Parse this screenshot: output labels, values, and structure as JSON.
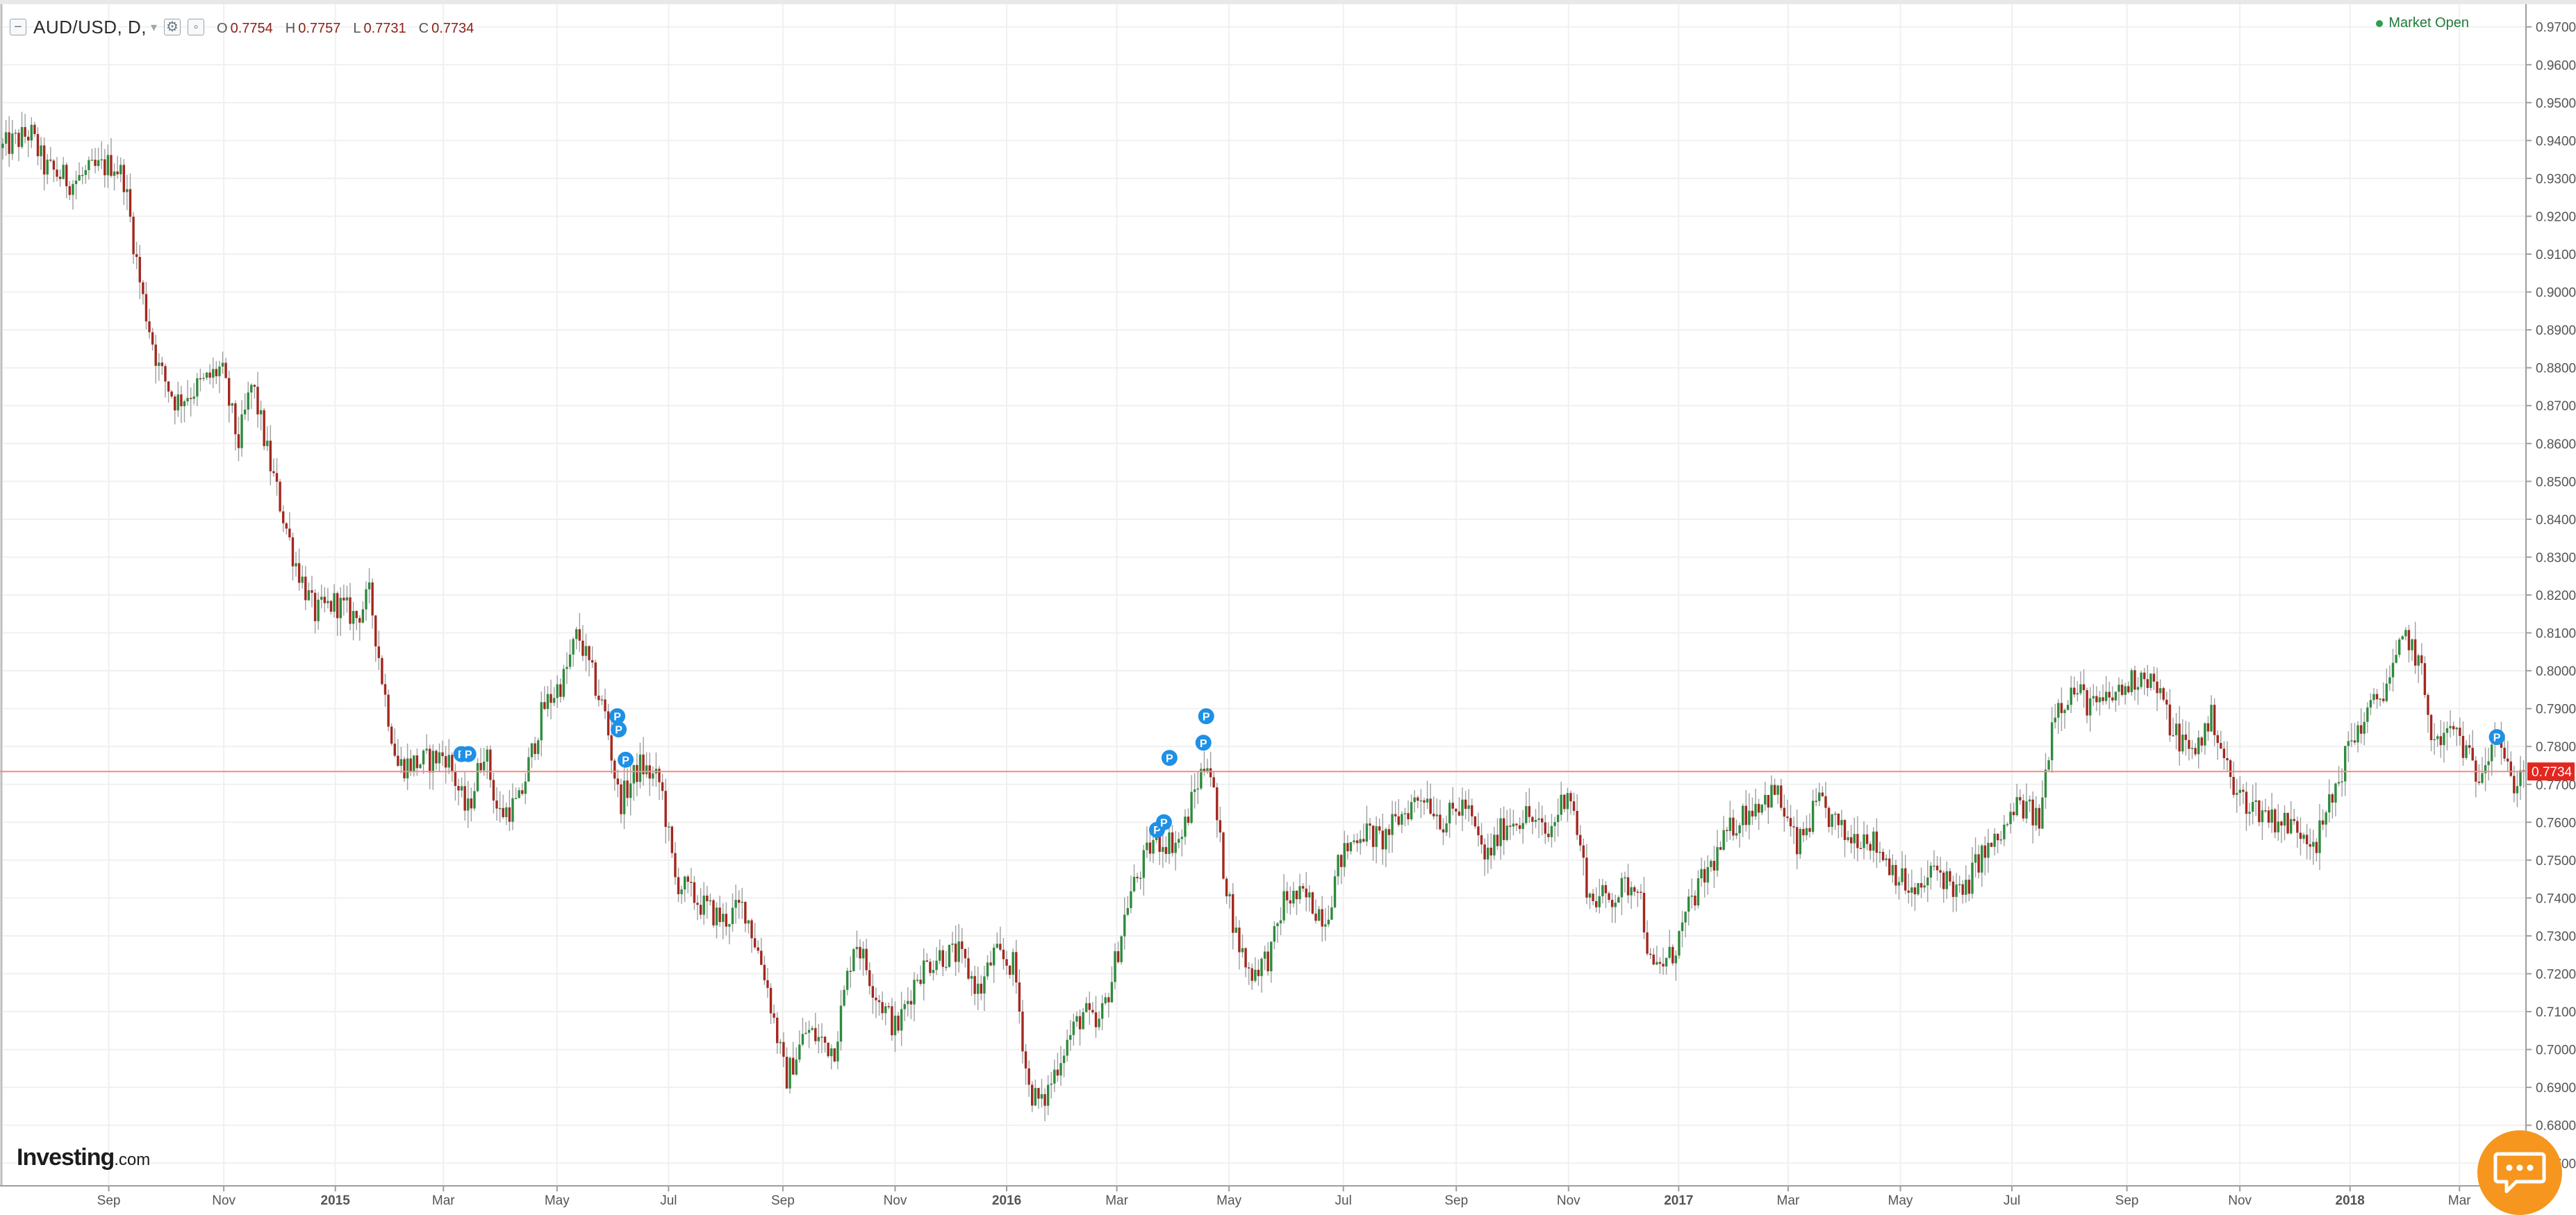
{
  "header": {
    "symbol": "AUD/USD, D,",
    "ohlc": [
      {
        "key": "O",
        "value": "0.7754"
      },
      {
        "key": "H",
        "value": "0.7757"
      },
      {
        "key": "L",
        "value": "0.7731"
      },
      {
        "key": "C",
        "value": "0.7734"
      }
    ],
    "market_status": "Market Open",
    "icons": [
      "collapse-legend-icon",
      "settings-icon",
      "hide-icon",
      "symbol-caret-icon"
    ]
  },
  "brand": {
    "name": "Investing",
    "suffix": ".com"
  },
  "chat": {
    "icon": "chat-bubble-icon"
  },
  "colors": {
    "up": "#2e8b3d",
    "down": "#a3271f",
    "wick": "#9e9e9e",
    "price_line": "#f28b82",
    "price_label_bg": "#e3261f",
    "marker": "#1e90e5",
    "chat": "#f6961e",
    "market_open": "#2e9d4f"
  },
  "chart_data": {
    "type": "candlestick",
    "interval": "D",
    "symbol": "AUD/USD",
    "last_price": "0.7734",
    "ylim": [
      0.664,
      0.976
    ],
    "price_ticks": [
      "0.9700",
      "0.9600",
      "0.9500",
      "0.9400",
      "0.9300",
      "0.9200",
      "0.9100",
      "0.9000",
      "0.8900",
      "0.8800",
      "0.8700",
      "0.8600",
      "0.8500",
      "0.8400",
      "0.8300",
      "0.8200",
      "0.8100",
      "0.8000",
      "0.7900",
      "0.7800",
      "0.7700",
      "0.7600",
      "0.7500",
      "0.7400",
      "0.7300",
      "0.7200",
      "0.7100",
      "0.7000",
      "0.6900",
      "0.6800",
      "0.6700"
    ],
    "time_ticks": [
      {
        "label": "Sep",
        "t": 153
      },
      {
        "label": "Nov",
        "t": 319
      },
      {
        "label": "2015",
        "t": 480,
        "bold": true
      },
      {
        "label": "Mar",
        "t": 636
      },
      {
        "label": "May",
        "t": 800
      },
      {
        "label": "Jul",
        "t": 961
      },
      {
        "label": "Sep",
        "t": 1126
      },
      {
        "label": "Nov",
        "t": 1288
      },
      {
        "label": "2016",
        "t": 1449,
        "bold": true
      },
      {
        "label": "Mar",
        "t": 1608
      },
      {
        "label": "May",
        "t": 1770
      },
      {
        "label": "Jul",
        "t": 1935
      },
      {
        "label": "Sep",
        "t": 2098
      },
      {
        "label": "Nov",
        "t": 2260
      },
      {
        "label": "2017",
        "t": 2419,
        "bold": true
      },
      {
        "label": "Mar",
        "t": 2577
      },
      {
        "label": "May",
        "t": 2739
      },
      {
        "label": "Jul",
        "t": 2900
      },
      {
        "label": "Sep",
        "t": 3066
      },
      {
        "label": "Nov",
        "t": 3229
      },
      {
        "label": "2018",
        "t": 3388,
        "bold": true
      },
      {
        "label": "Mar",
        "t": 3546
      }
    ],
    "t_range": [
      0,
      3642
    ],
    "path_keypoints": [
      [
        0,
        0.938
      ],
      [
        40,
        0.942
      ],
      [
        60,
        0.933
      ],
      [
        100,
        0.929
      ],
      [
        130,
        0.932
      ],
      [
        160,
        0.934
      ],
      [
        175,
        0.93
      ],
      [
        200,
        0.9
      ],
      [
        225,
        0.88
      ],
      [
        250,
        0.871
      ],
      [
        290,
        0.876
      ],
      [
        315,
        0.88
      ],
      [
        340,
        0.86
      ],
      [
        360,
        0.876
      ],
      [
        385,
        0.855
      ],
      [
        420,
        0.83
      ],
      [
        450,
        0.815
      ],
      [
        480,
        0.818
      ],
      [
        510,
        0.814
      ],
      [
        530,
        0.82
      ],
      [
        550,
        0.795
      ],
      [
        570,
        0.775
      ],
      [
        610,
        0.776
      ],
      [
        640,
        0.778
      ],
      [
        670,
        0.762
      ],
      [
        695,
        0.78
      ],
      [
        715,
        0.762
      ],
      [
        745,
        0.765
      ],
      [
        780,
        0.79
      ],
      [
        810,
        0.798
      ],
      [
        830,
        0.81
      ],
      [
        870,
        0.788
      ],
      [
        890,
        0.765
      ],
      [
        920,
        0.775
      ],
      [
        950,
        0.77
      ],
      [
        970,
        0.745
      ],
      [
        1010,
        0.738
      ],
      [
        1040,
        0.734
      ],
      [
        1070,
        0.738
      ],
      [
        1100,
        0.72
      ],
      [
        1130,
        0.692
      ],
      [
        1160,
        0.705
      ],
      [
        1200,
        0.7
      ],
      [
        1230,
        0.73
      ],
      [
        1260,
        0.715
      ],
      [
        1290,
        0.705
      ],
      [
        1320,
        0.72
      ],
      [
        1350,
        0.725
      ],
      [
        1380,
        0.725
      ],
      [
        1410,
        0.715
      ],
      [
        1430,
        0.725
      ],
      [
        1460,
        0.722
      ],
      [
        1480,
        0.69
      ],
      [
        1500,
        0.685
      ],
      [
        1530,
        0.7
      ],
      [
        1560,
        0.71
      ],
      [
        1580,
        0.705
      ],
      [
        1600,
        0.718
      ],
      [
        1625,
        0.74
      ],
      [
        1660,
        0.755
      ],
      [
        1700,
        0.755
      ],
      [
        1720,
        0.768
      ],
      [
        1740,
        0.778
      ],
      [
        1760,
        0.75
      ],
      [
        1780,
        0.73
      ],
      [
        1800,
        0.72
      ],
      [
        1830,
        0.725
      ],
      [
        1850,
        0.74
      ],
      [
        1880,
        0.74
      ],
      [
        1910,
        0.735
      ],
      [
        1930,
        0.75
      ],
      [
        1960,
        0.758
      ],
      [
        1990,
        0.755
      ],
      [
        2020,
        0.762
      ],
      [
        2050,
        0.768
      ],
      [
        2080,
        0.76
      ],
      [
        2110,
        0.765
      ],
      [
        2140,
        0.75
      ],
      [
        2170,
        0.76
      ],
      [
        2200,
        0.762
      ],
      [
        2230,
        0.756
      ],
      [
        2260,
        0.77
      ],
      [
        2290,
        0.74
      ],
      [
        2320,
        0.74
      ],
      [
        2360,
        0.745
      ],
      [
        2380,
        0.72
      ],
      [
        2410,
        0.725
      ],
      [
        2440,
        0.74
      ],
      [
        2470,
        0.75
      ],
      [
        2500,
        0.76
      ],
      [
        2530,
        0.765
      ],
      [
        2560,
        0.768
      ],
      [
        2590,
        0.753
      ],
      [
        2620,
        0.765
      ],
      [
        2660,
        0.756
      ],
      [
        2690,
        0.757
      ],
      [
        2720,
        0.75
      ],
      [
        2760,
        0.74
      ],
      [
        2790,
        0.748
      ],
      [
        2830,
        0.74
      ],
      [
        2850,
        0.75
      ],
      [
        2880,
        0.755
      ],
      [
        2910,
        0.765
      ],
      [
        2940,
        0.76
      ],
      [
        2960,
        0.79
      ],
      [
        2990,
        0.795
      ],
      [
        3020,
        0.79
      ],
      [
        3060,
        0.795
      ],
      [
        3090,
        0.8
      ],
      [
        3110,
        0.795
      ],
      [
        3130,
        0.785
      ],
      [
        3160,
        0.778
      ],
      [
        3190,
        0.788
      ],
      [
        3220,
        0.768
      ],
      [
        3250,
        0.764
      ],
      [
        3290,
        0.76
      ],
      [
        3320,
        0.758
      ],
      [
        3340,
        0.755
      ],
      [
        3360,
        0.765
      ],
      [
        3390,
        0.782
      ],
      [
        3420,
        0.79
      ],
      [
        3450,
        0.8
      ],
      [
        3470,
        0.81
      ],
      [
        3490,
        0.8
      ],
      [
        3510,
        0.78
      ],
      [
        3540,
        0.785
      ],
      [
        3570,
        0.772
      ],
      [
        3600,
        0.785
      ],
      [
        3620,
        0.77
      ],
      [
        3642,
        0.7734
      ]
    ],
    "event_markers": [
      {
        "label": "P",
        "t": 662,
        "price": 0.778
      },
      {
        "label": "P",
        "t": 672,
        "price": 0.778
      },
      {
        "label": "P",
        "t": 887,
        "price": 0.788
      },
      {
        "label": "P",
        "t": 889,
        "price": 0.7845
      },
      {
        "label": "P",
        "t": 899,
        "price": 0.7765
      },
      {
        "label": "P",
        "t": 1684,
        "price": 0.777
      },
      {
        "label": "P",
        "t": 1666,
        "price": 0.758
      },
      {
        "label": "P",
        "t": 1676,
        "price": 0.76
      },
      {
        "label": "P",
        "t": 1733,
        "price": 0.781
      },
      {
        "label": "P",
        "t": 1737,
        "price": 0.788
      },
      {
        "label": "P",
        "t": 3600,
        "price": 0.7825
      }
    ]
  }
}
